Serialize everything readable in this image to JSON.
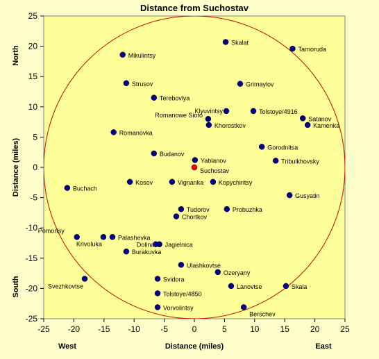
{
  "chart_data": {
    "type": "scatter",
    "title": "Distance from Suchostav",
    "xlabel": "Distance (miles)",
    "ylabel": "Distance (miles)",
    "xlim": [
      -25,
      25
    ],
    "ylim": [
      -25,
      25
    ],
    "x_ticks": [
      -25,
      -20,
      -15,
      -10,
      -5,
      0,
      5,
      10,
      15,
      20,
      25
    ],
    "y_ticks": [
      -25,
      -20,
      -15,
      -10,
      -5,
      0,
      5,
      10,
      15,
      20,
      25
    ],
    "grid": false,
    "direction_labels": {
      "north": "North",
      "south": "South",
      "west": "West",
      "east": "East"
    },
    "circle": {
      "center": [
        0,
        0
      ],
      "radius": 25,
      "color": "#CC0000"
    },
    "colors": {
      "plot_bg": "#FFFF99",
      "page_bg": "#FFFFCC",
      "point": "#000080",
      "center_point": "#FF0000"
    },
    "points": [
      {
        "label": "Skalat",
        "x": 5.2,
        "y": 20.7
      },
      {
        "label": "Tarnoruda",
        "x": 16.3,
        "y": 19.6
      },
      {
        "label": "Mikulintsy",
        "x": -11.9,
        "y": 18.6
      },
      {
        "label": "Strusov",
        "x": -11.3,
        "y": 13.9
      },
      {
        "label": "Grimaylov",
        "x": 7.6,
        "y": 13.8
      },
      {
        "label": "Terebovlya",
        "x": -6.7,
        "y": 11.5
      },
      {
        "label": "Klyuvintsy",
        "x": 5.3,
        "y": 9.3
      },
      {
        "label": "Tolstoye/4916",
        "x": 9.8,
        "y": 9.3
      },
      {
        "label": "Satanov",
        "x": 18.0,
        "y": 8.1
      },
      {
        "label": "Romanowe Sioto",
        "x": 2.3,
        "y": 8.0
      },
      {
        "label": "Kamenka",
        "x": 18.8,
        "y": 7.0
      },
      {
        "label": "Khorostkov",
        "x": 2.4,
        "y": 7.0
      },
      {
        "label": "Romanovka",
        "x": -13.4,
        "y": 5.8
      },
      {
        "label": "Gorodnitsa",
        "x": 11.2,
        "y": 3.4
      },
      {
        "label": "Budanov",
        "x": -6.7,
        "y": 2.3
      },
      {
        "label": "Yablanov",
        "x": 0.1,
        "y": 1.2
      },
      {
        "label": "Tribulkhovsky",
        "x": 13.5,
        "y": 1.1
      },
      {
        "label": "Suchostav",
        "x": 0,
        "y": 0,
        "center": true
      },
      {
        "label": "Kosov",
        "x": -10.7,
        "y": -2.4
      },
      {
        "label": "Vignanka",
        "x": -3.7,
        "y": -2.4
      },
      {
        "label": "Kopychintsy",
        "x": 3.1,
        "y": -2.4
      },
      {
        "label": "Buchach",
        "x": -21.1,
        "y": -3.4
      },
      {
        "label": "Gusyatin",
        "x": 15.8,
        "y": -4.6
      },
      {
        "label": "Tudorov",
        "x": -2.2,
        "y": -6.9
      },
      {
        "label": "Probuzhka",
        "x": 5.4,
        "y": -6.9
      },
      {
        "label": "Chortkov",
        "x": -3.0,
        "y": -8.1
      },
      {
        "label": "Pomortsy",
        "x": -19.5,
        "y": -11.5
      },
      {
        "label": "Krivoluka",
        "x": -15.1,
        "y": -11.5
      },
      {
        "label": "Palashevka",
        "x": -13.6,
        "y": -11.5
      },
      {
        "label": "Dolina",
        "x": -6.4,
        "y": -12.7
      },
      {
        "label": "Jagielnica",
        "x": -5.8,
        "y": -12.7
      },
      {
        "label": "Burakuvka",
        "x": -11.3,
        "y": -13.9
      },
      {
        "label": "Ulashkovtse",
        "x": -2.2,
        "y": -16.1
      },
      {
        "label": "Ozeryany",
        "x": 3.9,
        "y": -17.3
      },
      {
        "label": "Svezhkovtse",
        "x": -18.2,
        "y": -18.4
      },
      {
        "label": "Svidora",
        "x": -6.1,
        "y": -18.4
      },
      {
        "label": "Lanovtse",
        "x": 6.1,
        "y": -19.6
      },
      {
        "label": "Skala",
        "x": 15.2,
        "y": -19.6
      },
      {
        "label": "Tolstoye/4850",
        "x": -6.1,
        "y": -20.8
      },
      {
        "label": "Vorvolintsy",
        "x": -6.1,
        "y": -23.1
      },
      {
        "label": "Berschev",
        "x": 8.2,
        "y": -23.1
      }
    ]
  }
}
